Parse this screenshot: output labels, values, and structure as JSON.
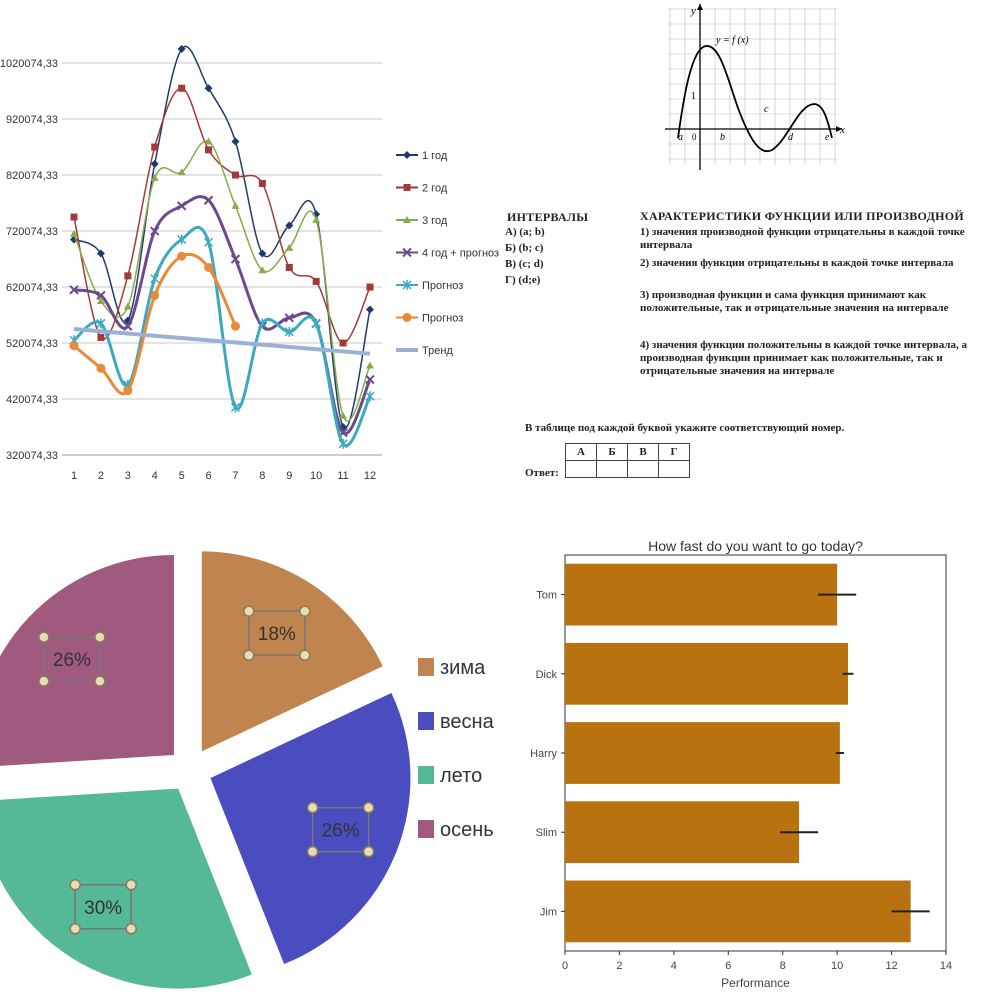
{
  "chart_data": [
    {
      "type": "line",
      "categories": [
        "1",
        "2",
        "3",
        "4",
        "5",
        "6",
        "7",
        "8",
        "9",
        "10",
        "11",
        "12"
      ],
      "y_ticks": [
        "320074,33",
        "420074,33",
        "520074,33",
        "620074,33",
        "720074,33",
        "820074,33",
        "920074,33",
        "1020074,33"
      ],
      "ylim": [
        320074.33,
        1070074.33
      ],
      "grid": true,
      "legend_position": "right",
      "series": [
        {
          "name": "1 год",
          "color": "#1f3a6e",
          "marker": "diamond",
          "values": [
            705000,
            680000,
            560000,
            840000,
            1045000,
            975000,
            880000,
            680000,
            730000,
            750000,
            370000,
            580000
          ]
        },
        {
          "name": "2 год",
          "color": "#a23a3a",
          "marker": "square",
          "values": [
            745000,
            530000,
            640000,
            870000,
            975000,
            865000,
            820000,
            805000,
            655000,
            630000,
            520000,
            620000
          ]
        },
        {
          "name": "3 год",
          "color": "#8aaa4a",
          "marker": "triangle",
          "values": [
            715000,
            595000,
            585000,
            815000,
            825000,
            880000,
            765000,
            650000,
            690000,
            740000,
            390000,
            480000
          ]
        },
        {
          "name": "4 год + прогноз",
          "color": "#6a4a8a",
          "marker": "x",
          "values": [
            615000,
            605000,
            550000,
            720000,
            765000,
            775000,
            670000,
            550000,
            565000,
            555000,
            360000,
            455000
          ]
        },
        {
          "name": "Прогноз",
          "color": "#3aaac0",
          "marker": "asterisk",
          "values": [
            525000,
            555000,
            445000,
            635000,
            705000,
            700000,
            405000,
            555000,
            540000,
            555000,
            340000,
            425000
          ]
        },
        {
          "name": "Прогноз",
          "color": "#e88a3a",
          "marker": "circle",
          "values": [
            515000,
            475000,
            435000,
            605000,
            675000,
            655000,
            550000,
            null,
            null,
            null,
            null,
            null
          ]
        },
        {
          "name": "Тренд",
          "color": "#9ab0d4",
          "marker": "none",
          "values": [
            545000,
            541000,
            537000,
            533000,
            529000,
            525000,
            521000,
            517000,
            513000,
            509000,
            505000,
            501000
          ]
        }
      ]
    },
    {
      "type": "pie",
      "legend_position": "right",
      "slices": [
        {
          "label": "зима",
          "value": 18,
          "text": "18%",
          "color": "#c0844e"
        },
        {
          "label": "весна",
          "value": 26,
          "text": "26%",
          "color": "#4a4dc0"
        },
        {
          "label": "лето",
          "value": 30,
          "text": "30%",
          "color": "#55b896"
        },
        {
          "label": "осень",
          "value": 26,
          "text": "26%",
          "color": "#a05a80"
        }
      ]
    },
    {
      "type": "bar",
      "orientation": "horizontal",
      "title": "How fast do you want to go today?",
      "xlabel": "Performance",
      "xlim": [
        0,
        14
      ],
      "x_ticks": [
        "0",
        "2",
        "4",
        "6",
        "8",
        "10",
        "12",
        "14"
      ],
      "color": "#b8720f",
      "categories": [
        "Tom",
        "Dick",
        "Harry",
        "Slim",
        "Jim"
      ],
      "values": [
        10.0,
        10.4,
        10.1,
        8.6,
        12.7
      ],
      "errors": [
        0.7,
        0.2,
        0.15,
        0.7,
        0.7
      ]
    },
    {
      "type": "function_graph",
      "function_label": "y = f (x)",
      "y_axis_label": "y",
      "x_axis_label": "x",
      "origin_label": "0",
      "unit_label": "1",
      "point_labels": [
        "a",
        "b",
        "c",
        "d",
        "e"
      ]
    }
  ],
  "task": {
    "intervals_title": "ИНТЕРВАЛЫ",
    "intervals": [
      "А) (a; b)",
      "Б) (b; c)",
      "В) (c; d)",
      "Г) (d;e)"
    ],
    "characteristics_title": "ХАРАКТЕРИСТИКИ ФУНКЦИИ ИЛИ ПРОИЗВОДНОЙ",
    "characteristics": [
      "1)  значения производной функции отрицательны в каждой точке интервала",
      "2)  значения функции отрицательны в каждой точке интервала",
      "3)  производная функции и сама функция принимают как положительные, так и отрицательные значения на интервале",
      "4)  значения функции положительны в каждой точке интервала, а производная функции принимает как положительные, так и отрицательные значения на интервале"
    ],
    "note": "В таблице под каждой буквой укажите соответствующий номер.",
    "answer_label": "Ответ:",
    "answer_headers": [
      "А",
      "Б",
      "В",
      "Г"
    ]
  }
}
